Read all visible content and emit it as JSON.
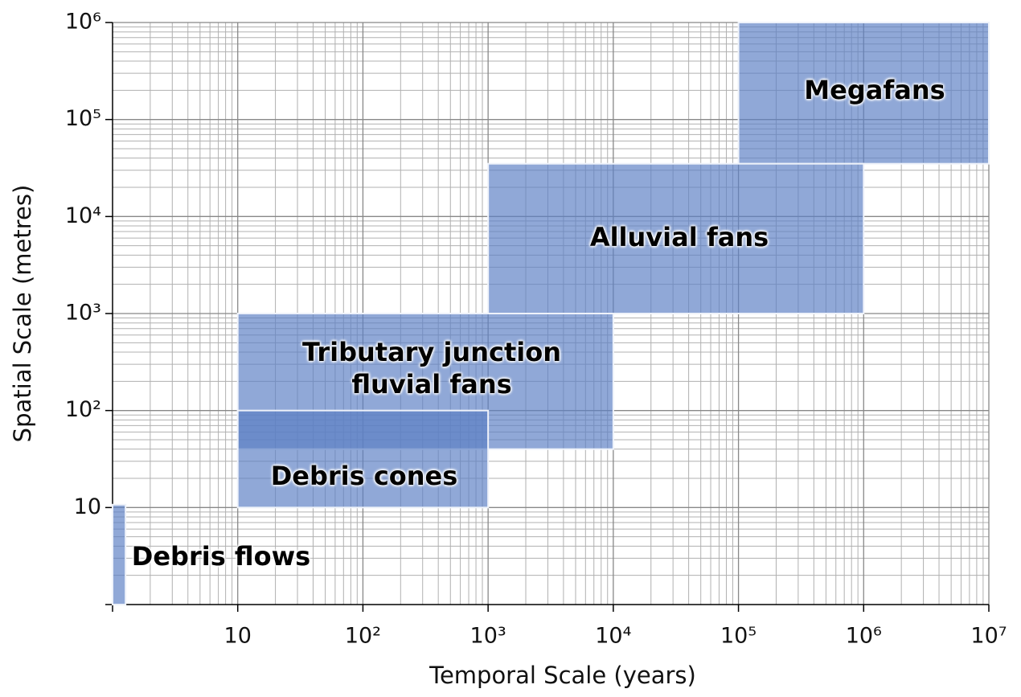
{
  "chart_data": {
    "type": "range",
    "xlabel": "Temporal Scale (years)",
    "ylabel": "Spatial Scale (metres)",
    "xscale": "log",
    "yscale": "log",
    "xlim": [
      1,
      10000000
    ],
    "ylim": [
      1,
      1000000
    ],
    "xticks": [
      10,
      {
        "value": 100,
        "label": "10²"
      },
      {
        "value": 1000,
        "label": "10³"
      },
      {
        "value": 10000,
        "label": "10⁴"
      },
      {
        "value": 100000,
        "label": "10⁵"
      },
      {
        "value": 1000000,
        "label": "10⁶"
      },
      {
        "value": 10000000,
        "label": "10⁷"
      }
    ],
    "yticks": [
      10,
      {
        "value": 100,
        "label": "10²"
      },
      {
        "value": 1000,
        "label": "10³"
      },
      {
        "value": 10000,
        "label": "10⁴"
      },
      {
        "value": 100000,
        "label": "10⁵"
      },
      {
        "value": 1000000,
        "label": "10⁶"
      }
    ],
    "grid": true,
    "color": "#5b7fc4",
    "series": [
      {
        "name": "Megafans",
        "x": [
          100000,
          10000000
        ],
        "y": [
          35000,
          1000000
        ]
      },
      {
        "name": "Alluvial fans",
        "x": [
          1000,
          1000000
        ],
        "y": [
          1000,
          35000
        ]
      },
      {
        "name": "Tributary junction fluvial fans",
        "x": [
          10,
          10000
        ],
        "y": [
          40,
          1000
        ]
      },
      {
        "name": "Debris cones",
        "x": [
          10,
          1000
        ],
        "y": [
          10,
          100
        ]
      },
      {
        "name": "Debris flows",
        "x": [
          1,
          1.27
        ],
        "y": [
          1,
          10.7
        ]
      }
    ]
  }
}
